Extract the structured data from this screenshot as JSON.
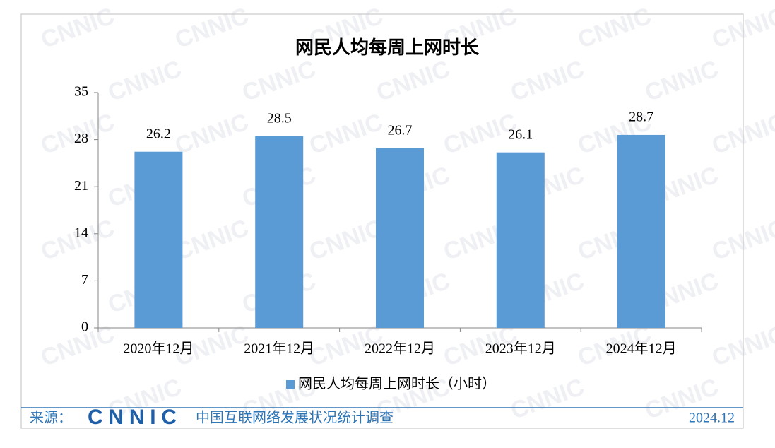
{
  "chart_data": {
    "type": "bar",
    "title": "网民人均每周上网时长",
    "categories": [
      "2020年12月",
      "2021年12月",
      "2022年12月",
      "2023年12月",
      "2024年12月"
    ],
    "series": [
      {
        "name": "网民人均每周上网时长（小时）",
        "color": "#5b9bd5",
        "values": [
          26.2,
          28.5,
          26.7,
          26.1,
          28.7
        ]
      }
    ],
    "ylim": [
      0,
      35
    ],
    "yticks": [
      0,
      7,
      14,
      21,
      28,
      35
    ],
    "grid": false,
    "legend": "bottom",
    "watermark": "CNNIC",
    "footer": {
      "source_label": "来源：",
      "logo": "CNNIC",
      "source": "中国互联网络发展状况统计调查",
      "date": "2024.12"
    }
  }
}
